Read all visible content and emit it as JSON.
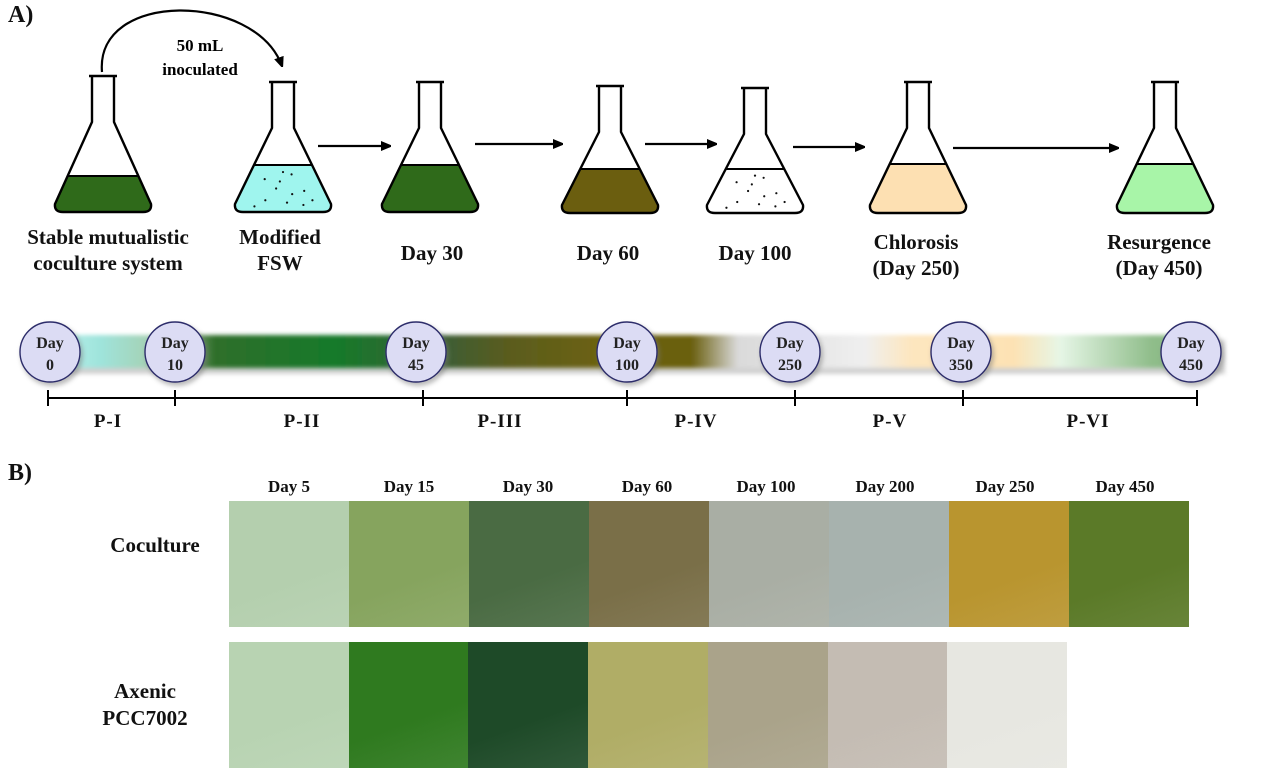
{
  "panel_a": {
    "label": "A)",
    "inoculation_label_line1": "50 mL",
    "inoculation_label_line2": "inoculated",
    "flasks": [
      {
        "line1": "Stable mutualistic",
        "line2": "coculture system",
        "fill": "#2f6a1a",
        "speckled": false
      },
      {
        "line1": "Modified",
        "line2": "FSW",
        "fill": "#9ff5ee",
        "speckled": true
      },
      {
        "line1": "Day 30",
        "line2": "",
        "fill": "#2f6a1a",
        "speckled": false
      },
      {
        "line1": "Day 60",
        "line2": "",
        "fill": "#6b5e0f",
        "speckled": false
      },
      {
        "line1": "Day 100",
        "line2": "",
        "fill": "#ffffff",
        "speckled": true
      },
      {
        "line1": "Chlorosis",
        "line2": "(Day 250)",
        "fill": "#fde0b2",
        "speckled": false
      },
      {
        "line1": "Resurgence",
        "line2": "(Day 450)",
        "fill": "#a8f5a8",
        "speckled": false
      }
    ],
    "timeline": {
      "days": [
        {
          "top": "Day",
          "bottom": "0"
        },
        {
          "top": "Day",
          "bottom": "10"
        },
        {
          "top": "Day",
          "bottom": "45"
        },
        {
          "top": "Day",
          "bottom": "100"
        },
        {
          "top": "Day",
          "bottom": "250"
        },
        {
          "top": "Day",
          "bottom": "350"
        },
        {
          "top": "Day",
          "bottom": "450"
        }
      ],
      "phases": [
        "P-I",
        "P-II",
        "P-III",
        "P-IV",
        "P-V",
        "P-VI"
      ]
    }
  },
  "panel_b": {
    "label": "B)",
    "columns": [
      "Day 5",
      "Day 15",
      "Day 30",
      "Day 60",
      "Day 100",
      "Day 200",
      "Day 250",
      "Day 450"
    ],
    "rows": [
      {
        "line1": "Coculture",
        "line2": "",
        "colors": [
          "#b4cfae",
          "#86a45e",
          "#4a6b43",
          "#7a6f48",
          "#a9aea4",
          "#a7b2ae",
          "#b9952f",
          "#5b7a28"
        ]
      },
      {
        "line1": "Axenic",
        "line2": "PCC7002",
        "colors": [
          "#b8d3b2",
          "#2f7a1f",
          "#1e4a28",
          "#b0ad66",
          "#aaa38a",
          "#c4bcb3",
          "#e7e7e1"
        ]
      }
    ]
  }
}
